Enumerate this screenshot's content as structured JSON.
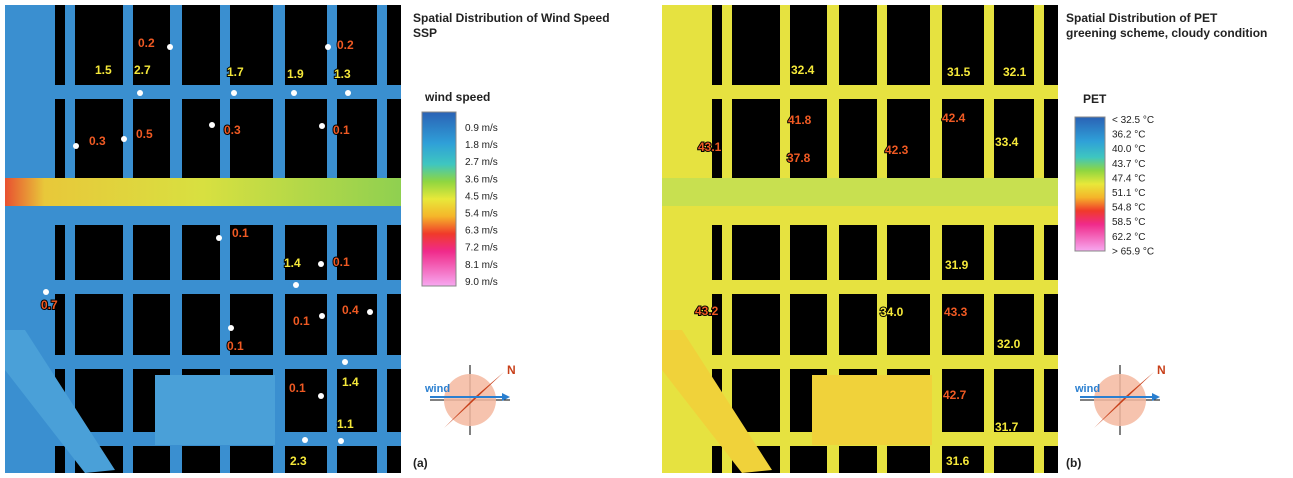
{
  "panel_a": {
    "title": [
      "Spatial Distribution of Wind Speed",
      "SSP"
    ],
    "legend_title": "wind speed",
    "legend_labels": [
      "0.9 m/s",
      "1.8 m/s",
      "2.7 m/s",
      "3.6 m/s",
      "4.5 m/s",
      "5.4 m/s",
      "6.3 m/s",
      "7.2 m/s",
      "8.1 m/s",
      "9.0 m/s"
    ],
    "point_labels": [
      "0.2",
      "0.2",
      "1.5",
      "2.7",
      "1.7",
      "1.9",
      "1.3",
      "0.3",
      "0.5",
      "0.3",
      "0.1",
      "0.1",
      "1.4",
      "0.1",
      "0.7",
      "0.1",
      "0.4",
      "0.1",
      "1.4",
      "0.1",
      "1.1",
      "2.3"
    ],
    "compass_wind": "wind",
    "compass_north": "N",
    "panel_label": "(a)"
  },
  "panel_b": {
    "title": [
      "Spatial Distribution of PET",
      "greening scheme, cloudy condition"
    ],
    "legend_title": "PET",
    "legend_labels": [
      "< 32.5 °C",
      "36.2  °C",
      "40.0  °C",
      "43.7  °C",
      "47.4  °C",
      "51.1  °C",
      "54.8  °C",
      "58.5  °C",
      "62.2  °C",
      "> 65.9 °C"
    ],
    "point_labels": [
      "32.4",
      "31.5",
      "32.1",
      "43.1",
      "41.8",
      "37.8",
      "42.3",
      "42.4",
      "33.4",
      "31.9",
      "43.2",
      "34.0",
      "43.3",
      "32.0",
      "42.7",
      "31.7",
      "31.6"
    ],
    "compass_wind": "wind",
    "compass_north": "N",
    "panel_label": "(b)"
  }
}
